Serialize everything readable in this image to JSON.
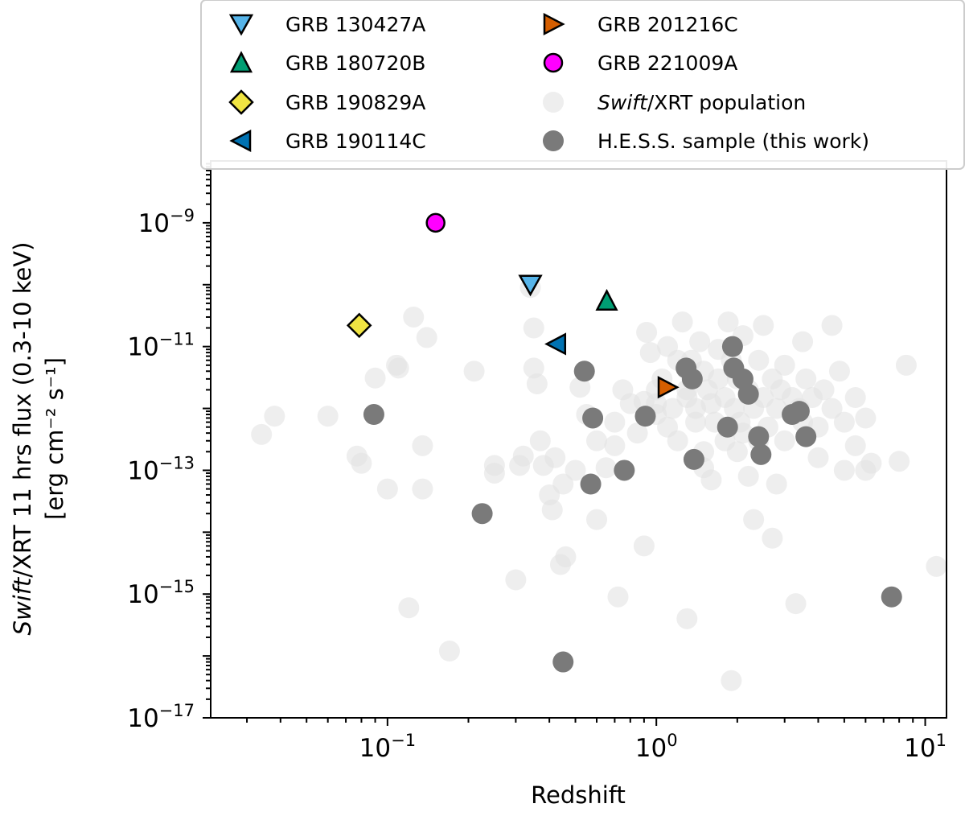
{
  "chart_data": {
    "type": "scatter",
    "x_scale": "log",
    "y_scale": "log",
    "xlim": [
      0.022,
      12
    ],
    "ylim": [
      1e-17,
      1e-08
    ],
    "xlabel": "Redshift",
    "ylabel_line1_prefix": "Swift",
    "ylabel_line1_suffix": "/XRT 11 hrs flux (0.3-10 keV)",
    "ylabel_line2": "[erg cm⁻² s⁻¹]",
    "x_ticks": [
      {
        "value": 0.1,
        "base": "10",
        "exp": "−1"
      },
      {
        "value": 1,
        "base": "10",
        "exp": "0"
      },
      {
        "value": 10,
        "base": "10",
        "exp": "1"
      }
    ],
    "y_ticks": [
      {
        "value": 1e-09,
        "base": "10",
        "exp": "−9"
      },
      {
        "value": 1e-11,
        "base": "10",
        "exp": "−11"
      },
      {
        "value": 1e-13,
        "base": "10",
        "exp": "−13"
      },
      {
        "value": 1e-15,
        "base": "10",
        "exp": "−15"
      },
      {
        "value": 1e-17,
        "base": "10",
        "exp": "−17"
      }
    ],
    "series": [
      {
        "name": "Swift/XRT population",
        "name_italic": "Swift",
        "name_rest": "/XRT population",
        "marker": "circle",
        "color": "#e3e3e3",
        "points": [
          [
            0.034,
            3.8e-13
          ],
          [
            0.038,
            7.5e-13
          ],
          [
            0.06,
            7.5e-13
          ],
          [
            0.077,
            1.7e-13
          ],
          [
            0.08,
            1.3e-13
          ],
          [
            0.09,
            3.1e-12
          ],
          [
            0.1,
            5e-14
          ],
          [
            0.108,
            5e-12
          ],
          [
            0.11,
            4.5e-12
          ],
          [
            0.12,
            6e-16
          ],
          [
            0.125,
            3e-11
          ],
          [
            0.135,
            2.5e-13
          ],
          [
            0.135,
            5e-14
          ],
          [
            0.14,
            1.4e-11
          ],
          [
            0.17,
            1.2e-16
          ],
          [
            0.21,
            4e-12
          ],
          [
            0.25,
            9e-14
          ],
          [
            0.25,
            1.2e-13
          ],
          [
            0.3,
            1.7e-15
          ],
          [
            0.31,
            1.2e-13
          ],
          [
            0.32,
            1.7e-13
          ],
          [
            0.34,
            9e-11
          ],
          [
            0.35,
            2e-11
          ],
          [
            0.35,
            4.5e-12
          ],
          [
            0.36,
            2.5e-12
          ],
          [
            0.37,
            3e-13
          ],
          [
            0.38,
            1.2e-13
          ],
          [
            0.4,
            4e-14
          ],
          [
            0.41,
            2.3e-14
          ],
          [
            0.42,
            1.6e-13
          ],
          [
            0.44,
            3e-15
          ],
          [
            0.45,
            6e-14
          ],
          [
            0.46,
            4e-15
          ],
          [
            0.5,
            1e-13
          ],
          [
            0.52,
            2.2e-12
          ],
          [
            0.55,
            8e-13
          ],
          [
            0.6,
            3e-13
          ],
          [
            0.6,
            1.6e-14
          ],
          [
            0.65,
            1.1e-13
          ],
          [
            0.7,
            6e-13
          ],
          [
            0.7,
            2.5e-13
          ],
          [
            0.72,
            9e-16
          ],
          [
            0.75,
            2e-12
          ],
          [
            0.8,
            1.2e-12
          ],
          [
            0.85,
            4e-13
          ],
          [
            0.9,
            1.3e-12
          ],
          [
            0.9,
            6e-15
          ],
          [
            0.92,
            1.7e-11
          ],
          [
            0.95,
            8e-12
          ],
          [
            1.0,
            2e-12
          ],
          [
            1.0,
            1.2e-12
          ],
          [
            1.0,
            8e-13
          ],
          [
            1.05,
            3e-12
          ],
          [
            1.1,
            1e-11
          ],
          [
            1.1,
            5e-13
          ],
          [
            1.15,
            1e-12
          ],
          [
            1.2,
            6e-12
          ],
          [
            1.2,
            3e-13
          ],
          [
            1.25,
            2.5e-11
          ],
          [
            1.3,
            2e-12
          ],
          [
            1.3,
            1.5e-12
          ],
          [
            1.3,
            4e-16
          ],
          [
            1.35,
            6e-12
          ],
          [
            1.4,
            1e-12
          ],
          [
            1.4,
            6e-13
          ],
          [
            1.45,
            1.2e-11
          ],
          [
            1.5,
            4e-12
          ],
          [
            1.5,
            2e-13
          ],
          [
            1.5,
            1.1e-13
          ],
          [
            1.55,
            2e-12
          ],
          [
            1.6,
            1.2e-12
          ],
          [
            1.6,
            7e-14
          ],
          [
            1.65,
            6e-13
          ],
          [
            1.7,
            9e-12
          ],
          [
            1.7,
            3e-12
          ],
          [
            1.8,
            1.5e-12
          ],
          [
            1.8,
            3e-13
          ],
          [
            1.85,
            2.5e-11
          ],
          [
            1.9,
            6e-12
          ],
          [
            1.9,
            4e-17
          ],
          [
            1.95,
            1e-12
          ],
          [
            2.0,
            3e-12
          ],
          [
            2.0,
            2e-13
          ],
          [
            2.05,
            6e-13
          ],
          [
            2.1,
            1.5e-11
          ],
          [
            2.1,
            4e-13
          ],
          [
            2.2,
            2e-12
          ],
          [
            2.2,
            8e-14
          ],
          [
            2.3,
            1e-12
          ],
          [
            2.3,
            1.6e-14
          ],
          [
            2.4,
            6e-12
          ],
          [
            2.4,
            3e-13
          ],
          [
            2.5,
            2.2e-11
          ],
          [
            2.5,
            1.5e-12
          ],
          [
            2.6,
            5e-13
          ],
          [
            2.7,
            3e-12
          ],
          [
            2.7,
            8e-15
          ],
          [
            2.8,
            1e-12
          ],
          [
            2.8,
            6e-14
          ],
          [
            2.9,
            2e-12
          ],
          [
            3.0,
            5e-12
          ],
          [
            3.0,
            3e-13
          ],
          [
            3.2,
            1.5e-12
          ],
          [
            3.3,
            7e-16
          ],
          [
            3.4,
            1e-12
          ],
          [
            3.5,
            1.2e-11
          ],
          [
            3.5,
            6e-13
          ],
          [
            3.6,
            3e-12
          ],
          [
            3.8,
            1.5e-12
          ],
          [
            4.0,
            5e-13
          ],
          [
            4.0,
            1.6e-13
          ],
          [
            4.2,
            2e-12
          ],
          [
            4.5,
            2.2e-11
          ],
          [
            4.5,
            1e-12
          ],
          [
            4.8,
            4e-12
          ],
          [
            5.0,
            6e-13
          ],
          [
            5.0,
            1e-13
          ],
          [
            5.5,
            1.5e-12
          ],
          [
            5.5,
            2.5e-13
          ],
          [
            6.0,
            7e-13
          ],
          [
            6.0,
            1e-13
          ],
          [
            6.3,
            1.3e-13
          ],
          [
            8.0,
            1.4e-13
          ],
          [
            8.5,
            5e-12
          ],
          [
            11.0,
            2.8e-15
          ]
        ]
      },
      {
        "name": "H.E.S.S. sample (this work)",
        "marker": "circle",
        "color": "#7a7a7a",
        "points": [
          [
            0.089,
            8e-13
          ],
          [
            0.225,
            2e-14
          ],
          [
            0.45,
            8e-17
          ],
          [
            0.54,
            4e-12
          ],
          [
            0.57,
            6e-14
          ],
          [
            0.58,
            7e-13
          ],
          [
            0.76,
            1e-13
          ],
          [
            0.91,
            7.5e-13
          ],
          [
            1.29,
            4.5e-12
          ],
          [
            1.36,
            3e-12
          ],
          [
            1.38,
            1.5e-13
          ],
          [
            1.84,
            5e-13
          ],
          [
            1.92,
            1e-11
          ],
          [
            1.94,
            4.5e-12
          ],
          [
            2.1,
            3e-12
          ],
          [
            2.2,
            1.7e-12
          ],
          [
            2.4,
            3.5e-13
          ],
          [
            2.45,
            1.8e-13
          ],
          [
            3.2,
            8e-13
          ],
          [
            3.4,
            9e-13
          ],
          [
            3.6,
            3.5e-13
          ],
          [
            7.5,
            9e-16
          ]
        ]
      },
      {
        "name": "GRB 130427A",
        "marker": "triangle-down",
        "color": "#56b4e9",
        "points": [
          [
            0.34,
            1e-10
          ]
        ]
      },
      {
        "name": "GRB 180720B",
        "marker": "triangle-up",
        "color": "#009e73",
        "points": [
          [
            0.654,
            5.5e-11
          ]
        ]
      },
      {
        "name": "GRB 190829A",
        "marker": "diamond",
        "color": "#f0e442",
        "points": [
          [
            0.0785,
            2.2e-11
          ]
        ]
      },
      {
        "name": "GRB 190114C",
        "marker": "triangle-left",
        "color": "#0072b2",
        "points": [
          [
            0.4245,
            1.1e-11
          ]
        ]
      },
      {
        "name": "GRB 201216C",
        "marker": "triangle-right",
        "color": "#d55e00",
        "points": [
          [
            1.1,
            2.2e-12
          ]
        ]
      },
      {
        "name": "GRB 221009A",
        "marker": "circle-edge",
        "color": "#ff00ff",
        "points": [
          [
            0.151,
            1e-09
          ]
        ]
      }
    ],
    "legend": {
      "placement": "top",
      "columns": [
        [
          "GRB 130427A",
          "GRB 180720B",
          "GRB 190829A",
          "GRB 190114C"
        ],
        [
          "GRB 201216C",
          "GRB 221009A",
          "Swift/XRT population",
          "H.E.S.S. sample (this work)"
        ]
      ]
    }
  }
}
